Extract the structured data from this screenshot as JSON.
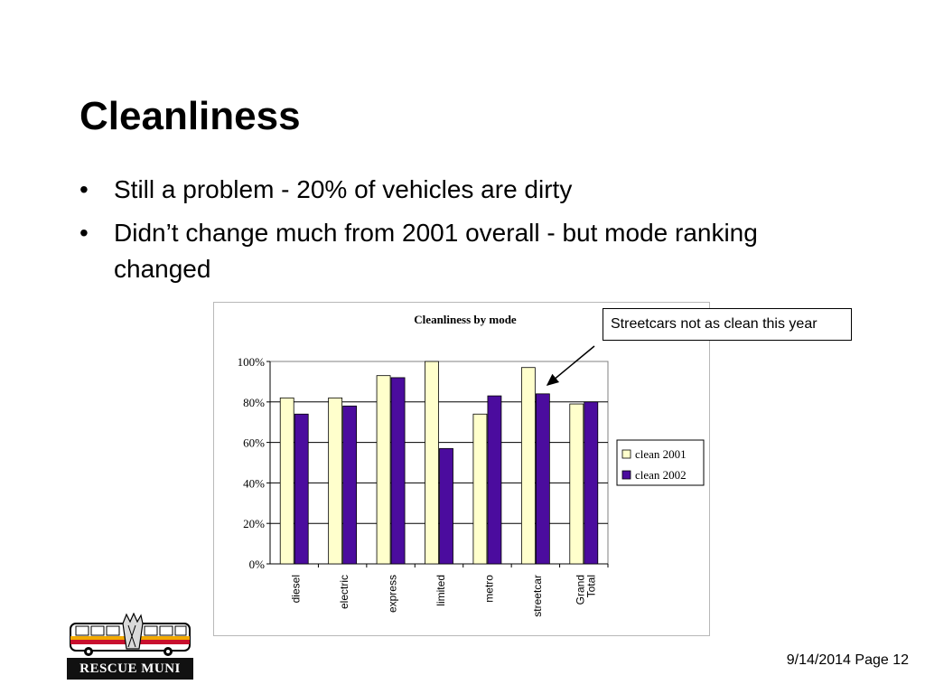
{
  "slide": {
    "title": "Cleanliness",
    "bullets": [
      "Still a problem - 20% of vehicles are dirty",
      "Didn’t change much from 2001 overall - but mode ranking changed"
    ],
    "bullet_glyph": "•",
    "callout": "Streetcars not as clean this year",
    "logo_text": "RESCUE MUNI",
    "footer_date": "9/14/2014",
    "footer_page": "Page 12"
  },
  "chart_data": {
    "type": "bar",
    "title": "Cleanliness by mode",
    "xlabel": "",
    "ylabel": "",
    "categories": [
      "diesel",
      "electric",
      "express",
      "limited",
      "metro",
      "streetcar",
      "Grand Total"
    ],
    "series": [
      {
        "name": "clean 2001",
        "color": "#ffffcc",
        "values": [
          0.82,
          0.82,
          0.93,
          1.0,
          0.74,
          0.97,
          0.79
        ]
      },
      {
        "name": "clean 2002",
        "color": "#4b0c9e",
        "values": [
          0.74,
          0.78,
          0.92,
          0.57,
          0.83,
          0.84,
          0.8
        ]
      }
    ],
    "yticks": [
      "0%",
      "20%",
      "40%",
      "60%",
      "80%",
      "100%"
    ],
    "ylim": [
      0,
      1
    ],
    "grid": true,
    "legend_position": "right"
  }
}
